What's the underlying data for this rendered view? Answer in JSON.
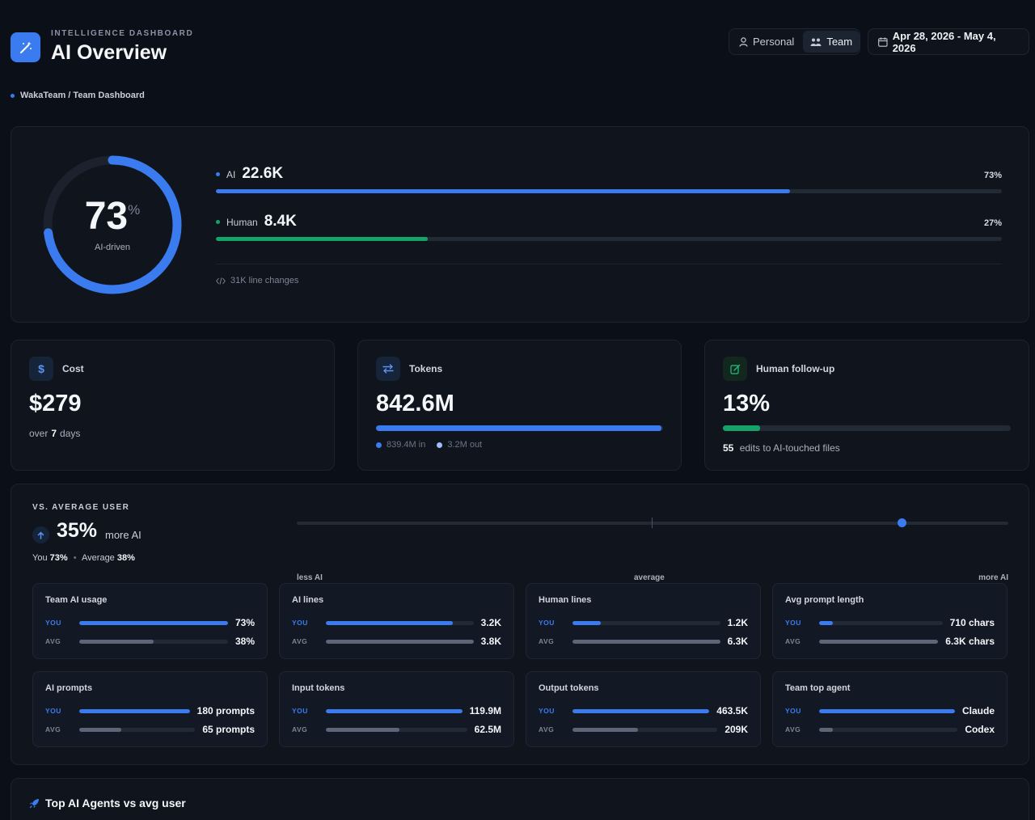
{
  "header": {
    "eyebrow": "INTELLIGENCE DASHBOARD",
    "title": "AI Overview",
    "toggle": {
      "personal": "Personal",
      "team": "Team",
      "active": "team"
    },
    "date_range": "Apr 28, 2026 - May 4, 2026"
  },
  "breadcrumb": "WakaTeam / Team Dashboard",
  "hero": {
    "ai_share": 73,
    "donut_value": "73",
    "donut_unit": "%",
    "donut_label": "AI-driven",
    "ai": {
      "label": "AI",
      "value": "22.6K",
      "pct": "73%",
      "fill": 0.73,
      "color": "#3b7bf0"
    },
    "human": {
      "label": "Human",
      "value": "8.4K",
      "pct": "27%",
      "fill": 0.27,
      "color": "#16a36a"
    },
    "footer": "31K line changes"
  },
  "stats": {
    "cost": {
      "label": "Cost",
      "value": "$279",
      "sub_prefix": "over",
      "sub_value": "7",
      "sub_suffix": "days",
      "icon": "dollar-icon"
    },
    "tokens": {
      "label": "Tokens",
      "value": "842.6M",
      "fill": 0.995,
      "in_label": "839.4M in",
      "out_label": "3.2M out",
      "icon": "swap-icon"
    },
    "followup": {
      "label": "Human follow-up",
      "value": "13%",
      "fill": 0.13,
      "sub_value": "55",
      "sub_suffix": "edits to AI-touched files",
      "icon": "edit-icon"
    }
  },
  "compare": {
    "eyebrow": "VS. AVERAGE USER",
    "delta": "35%",
    "delta_suffix": "more AI",
    "you_label": "You",
    "you_value": "73%",
    "avg_label": "Average",
    "avg_value": "38%",
    "scale_position": 0.85,
    "scale_labels": {
      "left": "less AI",
      "mid": "average",
      "right": "more AI"
    },
    "you_tag": "YOU",
    "avg_tag": "AVG",
    "metrics": [
      {
        "title": "Team AI usage",
        "you": "73%",
        "avg": "38%",
        "you_fill": 1.0,
        "avg_fill": 0.5
      },
      {
        "title": "AI lines",
        "you": "3.2K",
        "avg": "3.8K",
        "you_fill": 0.86,
        "avg_fill": 1.0
      },
      {
        "title": "Human lines",
        "you": "1.2K",
        "avg": "6.3K",
        "you_fill": 0.19,
        "avg_fill": 1.0
      },
      {
        "title": "Avg prompt length",
        "you": "710 chars",
        "avg": "6.3K chars",
        "you_fill": 0.11,
        "avg_fill": 1.0
      },
      {
        "title": "AI prompts",
        "you": "180 prompts",
        "avg": "65 prompts",
        "you_fill": 1.0,
        "avg_fill": 0.36
      },
      {
        "title": "Input tokens",
        "you": "119.9M",
        "avg": "62.5M",
        "you_fill": 1.0,
        "avg_fill": 0.52
      },
      {
        "title": "Output tokens",
        "you": "463.5K",
        "avg": "209K",
        "you_fill": 1.0,
        "avg_fill": 0.45
      },
      {
        "title": "Team top agent",
        "you": "Claude",
        "avg": "Codex",
        "you_fill": 1.0,
        "avg_fill": 0.1
      }
    ]
  },
  "agents": {
    "title": "Top AI Agents vs avg user"
  },
  "colors": {
    "accent": "#3b7bf0",
    "human": "#16a36a",
    "avg_bar": "#5d6677",
    "track": "#222a36"
  }
}
